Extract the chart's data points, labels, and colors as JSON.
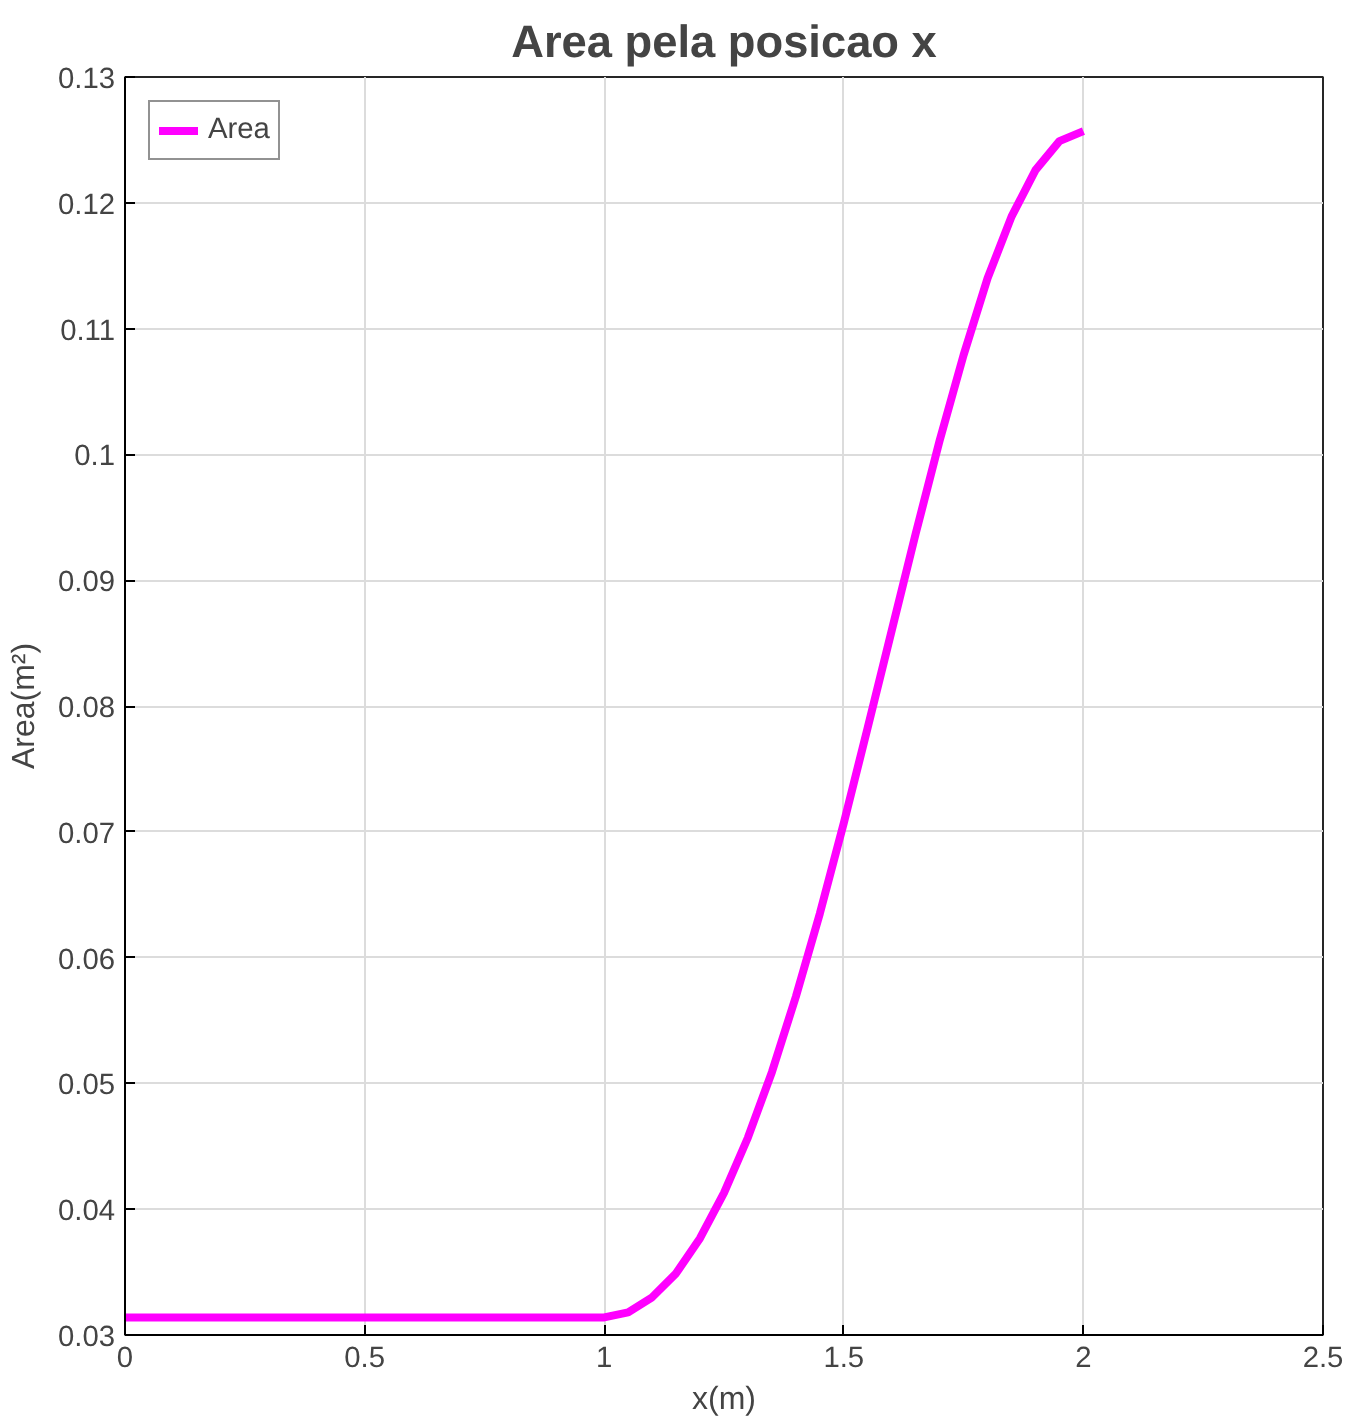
{
  "chart_data": {
    "type": "line",
    "title": "Area pela posicao x",
    "xlabel": "x(m)",
    "ylabel": "Area(m²)",
    "x": [
      0,
      0.5,
      1.0,
      1.05,
      1.1,
      1.15,
      1.2,
      1.25,
      1.3,
      1.35,
      1.4,
      1.45,
      1.5,
      1.55,
      1.6,
      1.65,
      1.7,
      1.75,
      1.8,
      1.85,
      1.9,
      1.95,
      2.0
    ],
    "series": [
      {
        "name": "Area",
        "color": "#ff00ff",
        "values": [
          0.0314,
          0.0314,
          0.0314,
          0.0318,
          0.033,
          0.0349,
          0.0377,
          0.0413,
          0.0457,
          0.0509,
          0.0569,
          0.0635,
          0.0707,
          0.0783,
          0.086,
          0.0937,
          0.1011,
          0.1079,
          0.114,
          0.1189,
          0.1226,
          0.1249,
          0.1257
        ]
      }
    ],
    "xlim": [
      0,
      2.5
    ],
    "xticks": [
      0,
      0.5,
      1,
      1.5,
      2,
      2.5
    ],
    "ylim": [
      0.03,
      0.13
    ],
    "yticks": [
      0.03,
      0.04,
      0.05,
      0.06,
      0.07,
      0.08,
      0.09,
      0.1,
      0.11,
      0.12,
      0.13
    ],
    "grid": true,
    "legend": "top left",
    "line_style": "solid"
  }
}
